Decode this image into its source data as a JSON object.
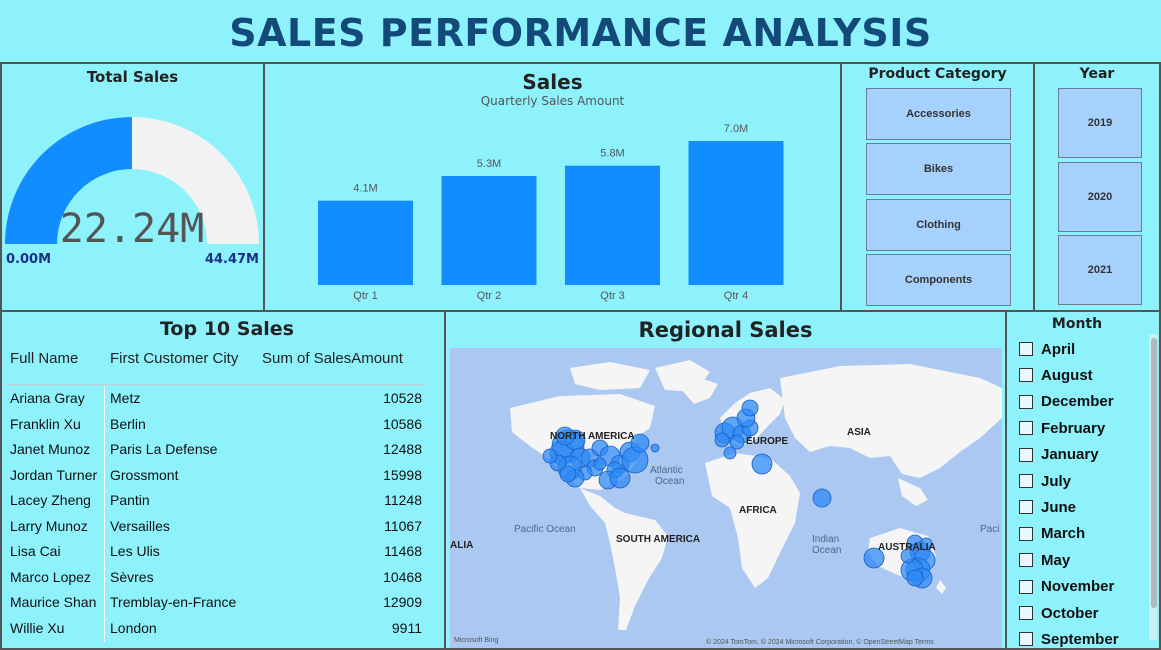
{
  "title": "SALES PERFORMANCE ANALYSIS",
  "gauge": {
    "title": "Total Sales",
    "value": 22.24,
    "min": 0,
    "max": 44.47,
    "value_label": "22.24M",
    "min_label": "0.00M",
    "max_label": "44.47M",
    "fill_color": "#118dff",
    "track_color": "#f2f2f2"
  },
  "chart_data": {
    "type": "bar",
    "title": "Sales",
    "subtitle": "Quarterly Sales Amount",
    "categories": [
      "Qtr 1",
      "Qtr 2",
      "Qtr 3",
      "Qtr 4"
    ],
    "values": [
      4.1,
      5.3,
      5.8,
      7.0
    ],
    "data_labels": [
      "4.1M",
      "5.3M",
      "5.8M",
      "7.0M"
    ],
    "ylim": [
      0,
      7.0
    ],
    "grid": false,
    "bar_color": "#118dff"
  },
  "product_category": {
    "title": "Product Category",
    "options": [
      "Accessories",
      "Bikes",
      "Clothing",
      "Components"
    ]
  },
  "year": {
    "title": "Year",
    "options": [
      "2019",
      "2020",
      "2021"
    ]
  },
  "top_sales": {
    "title": "Top 10 Sales",
    "columns": [
      "Full Name",
      "First Customer City",
      "Sum of SalesAmount"
    ],
    "rows": [
      [
        "Ariana Gray",
        "Metz",
        "10528"
      ],
      [
        "Franklin Xu",
        "Berlin",
        "10586"
      ],
      [
        "Janet Munoz",
        "Paris La Defense",
        "12488"
      ],
      [
        "Jordan Turner",
        "Grossmont",
        "15998"
      ],
      [
        "Lacey Zheng",
        "Pantin",
        "11248"
      ],
      [
        "Larry Munoz",
        "Versailles",
        "11067"
      ],
      [
        "Lisa Cai",
        "Les Ulis",
        "11468"
      ],
      [
        "Marco Lopez",
        "Sèvres",
        "10468"
      ],
      [
        "Maurice Shan",
        "Tremblay-en-France",
        "12909"
      ],
      [
        "Willie Xu",
        "London",
        "9911"
      ]
    ]
  },
  "map": {
    "title": "Regional Sales",
    "labels": {
      "north_america": "NORTH AMERICA",
      "europe": "EUROPE",
      "asia": "ASIA",
      "africa": "AFRICA",
      "south_america": "SOUTH AMERICA",
      "australia": "AUSTRALIA",
      "atlantic": "Atlantic",
      "ocean": "Ocean",
      "pacific": "Pacific Ocean",
      "indian": "Indian",
      "indian_ocean": "Ocean",
      "pacific_right": "Paci",
      "alia": "ALIA"
    },
    "attribution": "© 2024 TomTom, © 2024 Microsoft Corporation, © OpenStreetMap  Terms",
    "logo": "Microsoft Bing",
    "ocean_color": "#aac8f2",
    "land_color": "#f5f5f5",
    "bubble_color": "#2e8af5"
  },
  "month": {
    "title": "Month",
    "options": [
      "April",
      "August",
      "December",
      "February",
      "January",
      "July",
      "June",
      "March",
      "May",
      "November",
      "October",
      "September"
    ]
  }
}
